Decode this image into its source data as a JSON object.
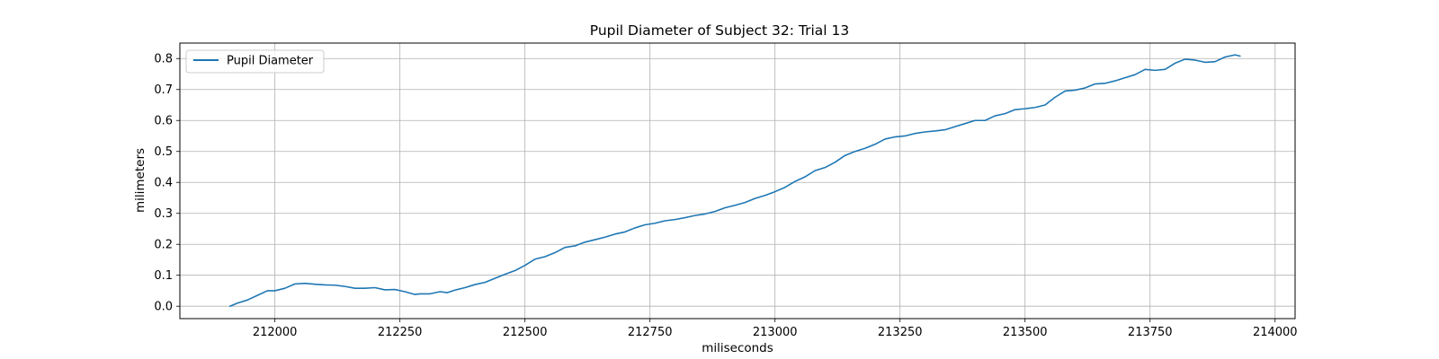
{
  "chart_data": {
    "type": "line",
    "title": "Pupil Diameter of Subject 32: Trial 13",
    "xlabel": "miliseconds",
    "ylabel": "milimeters",
    "xlim": [
      211810,
      214040
    ],
    "ylim": [
      -0.04,
      0.85
    ],
    "xticks": [
      212000,
      212250,
      212500,
      212750,
      213000,
      213250,
      213500,
      213750,
      214000
    ],
    "yticks": [
      0.0,
      0.1,
      0.2,
      0.3,
      0.4,
      0.5,
      0.6,
      0.7,
      0.8
    ],
    "ytick_labels": [
      "0.0",
      "0.1",
      "0.2",
      "0.3",
      "0.4",
      "0.5",
      "0.6",
      "0.7",
      "0.8"
    ],
    "grid": true,
    "legend_position": "upper-left",
    "series": [
      {
        "name": "Pupil Diameter",
        "color": "#1f77b4",
        "x": [
          211910,
          211925,
          211945,
          211965,
          211985,
          212000,
          212020,
          212040,
          212060,
          212080,
          212100,
          212120,
          212140,
          212160,
          212180,
          212200,
          212220,
          212240,
          212260,
          212280,
          212290,
          212310,
          212330,
          212345,
          212360,
          212380,
          212400,
          212420,
          212440,
          212460,
          212480,
          212500,
          212520,
          212540,
          212560,
          212580,
          212600,
          212620,
          212640,
          212660,
          212680,
          212700,
          212720,
          212740,
          212760,
          212780,
          212800,
          212820,
          212840,
          212860,
          212880,
          212900,
          212920,
          212940,
          212960,
          212980,
          213000,
          213020,
          213040,
          213060,
          213080,
          213100,
          213120,
          213140,
          213160,
          213180,
          213200,
          213220,
          213240,
          213260,
          213280,
          213300,
          213320,
          213340,
          213360,
          213380,
          213400,
          213420,
          213440,
          213460,
          213480,
          213500,
          213520,
          213540,
          213560,
          213580,
          213600,
          213620,
          213640,
          213660,
          213680,
          213700,
          213720,
          213740,
          213760,
          213780,
          213800,
          213820,
          213840,
          213860,
          213880,
          213900,
          213920,
          213930
        ],
        "values": [
          0.0,
          0.01,
          0.02,
          0.035,
          0.05,
          0.05,
          0.058,
          0.072,
          0.074,
          0.071,
          0.069,
          0.068,
          0.064,
          0.058,
          0.058,
          0.06,
          0.053,
          0.054,
          0.047,
          0.038,
          0.04,
          0.04,
          0.047,
          0.044,
          0.052,
          0.06,
          0.07,
          0.077,
          0.09,
          0.103,
          0.115,
          0.132,
          0.152,
          0.16,
          0.173,
          0.19,
          0.195,
          0.207,
          0.215,
          0.223,
          0.233,
          0.24,
          0.253,
          0.263,
          0.268,
          0.276,
          0.28,
          0.286,
          0.293,
          0.298,
          0.306,
          0.318,
          0.326,
          0.335,
          0.348,
          0.358,
          0.37,
          0.384,
          0.403,
          0.418,
          0.438,
          0.448,
          0.465,
          0.487,
          0.5,
          0.51,
          0.523,
          0.54,
          0.547,
          0.55,
          0.558,
          0.563,
          0.566,
          0.57,
          0.58,
          0.59,
          0.6,
          0.6,
          0.615,
          0.622,
          0.635,
          0.638,
          0.642,
          0.65,
          0.675,
          0.695,
          0.698,
          0.705,
          0.718,
          0.72,
          0.728,
          0.738,
          0.748,
          0.765,
          0.762,
          0.765,
          0.785,
          0.798,
          0.795,
          0.788,
          0.79,
          0.805,
          0.812,
          0.808
        ]
      }
    ]
  }
}
